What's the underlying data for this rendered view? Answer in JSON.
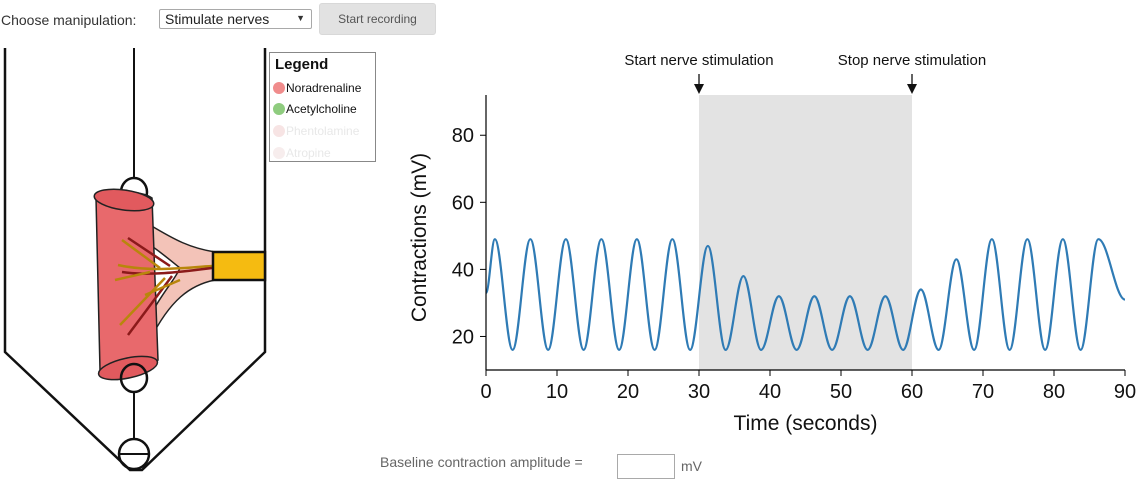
{
  "toolbar": {
    "manipulation_label": "Choose manipulation:",
    "select_value": "Stimulate nerves",
    "record_button": "Start recording"
  },
  "legend": {
    "title": "Legend",
    "items": [
      {
        "label": "Noradrenaline",
        "color": "#f08c8c",
        "active": true
      },
      {
        "label": "Acetylcholine",
        "color": "#8fcc7f",
        "active": true
      },
      {
        "label": "Phentolamine",
        "color": "#f7e4e4",
        "active": false
      },
      {
        "label": "Atropine",
        "color": "#f7eded",
        "active": false
      }
    ]
  },
  "apparatus": {
    "tissue_color": "#e8696c",
    "tissue_dark": "#d55050",
    "nerve_color": "#f3c3b8",
    "electrode_color": "#f5bb11"
  },
  "chart_data": {
    "type": "line",
    "xlabel": "Time (seconds)",
    "ylabel": "Contractions (mV)",
    "xlim": [
      0,
      90
    ],
    "ylim": [
      10,
      92
    ],
    "xticks": [
      0,
      10,
      20,
      30,
      40,
      50,
      60,
      70,
      80,
      90
    ],
    "yticks": [
      20,
      40,
      60,
      80
    ],
    "shaded_region": [
      30,
      60
    ],
    "line_color": "#2f7bb5",
    "annotations": [
      {
        "text": "Start nerve stimulation",
        "x": 30
      },
      {
        "text": "Stop nerve stimulation",
        "x": 60
      }
    ],
    "series": [
      {
        "period": 5,
        "phase_start_x": 0,
        "start_value": 33,
        "baseline": {
          "min": 16,
          "max": 49
        },
        "stimulated": {
          "min": 16,
          "max": 32
        },
        "peaks": [
          {
            "x": 1.25,
            "y": 49
          },
          {
            "x": 6.25,
            "y": 49
          },
          {
            "x": 11.25,
            "y": 49
          },
          {
            "x": 16.25,
            "y": 49
          },
          {
            "x": 21.25,
            "y": 49
          },
          {
            "x": 26.25,
            "y": 49
          },
          {
            "x": 31.25,
            "y": 47
          },
          {
            "x": 36.25,
            "y": 38
          },
          {
            "x": 41.25,
            "y": 32
          },
          {
            "x": 46.25,
            "y": 32
          },
          {
            "x": 51.25,
            "y": 32
          },
          {
            "x": 56.25,
            "y": 32
          },
          {
            "x": 61.25,
            "y": 34
          },
          {
            "x": 66.25,
            "y": 43
          },
          {
            "x": 71.25,
            "y": 49
          },
          {
            "x": 76.25,
            "y": 49
          },
          {
            "x": 81.25,
            "y": 49
          },
          {
            "x": 86.25,
            "y": 49
          }
        ],
        "trough_value": 16,
        "end_value": 31
      }
    ]
  },
  "baseline_input": {
    "label": "Baseline contraction amplitude =",
    "value": "",
    "unit": "mV"
  }
}
